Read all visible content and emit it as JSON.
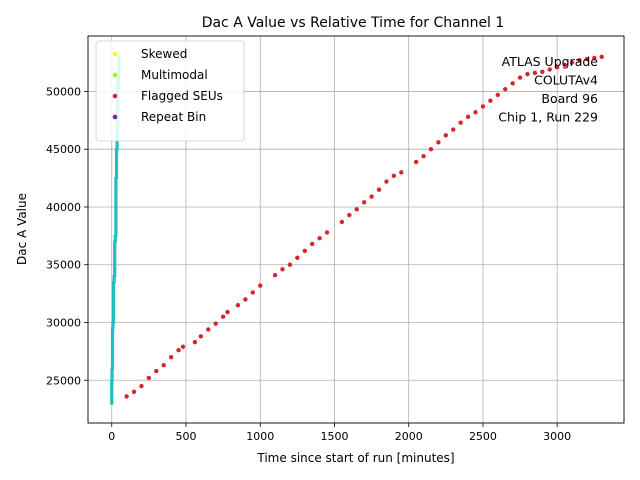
{
  "chart_data": {
    "type": "scatter",
    "title": "Dac A Value vs Relative Time for Channel 1",
    "xlabel": "Time since start of run [minutes]",
    "ylabel": "Dac A Value",
    "xlim": [
      -160,
      3450
    ],
    "ylim": [
      21300,
      54800
    ],
    "xticks": [
      0,
      500,
      1000,
      1500,
      2000,
      2500,
      3000
    ],
    "yticks": [
      25000,
      30000,
      35000,
      40000,
      45000,
      50000
    ],
    "grid": true,
    "legend_position": "top-left",
    "annotation": [
      "ATLAS Upgrade",
      "COLUTAv4",
      "Board 96",
      "Chip 1, Run 229"
    ],
    "series": [
      {
        "name": "Skewed",
        "color": "#ffff00",
        "points": []
      },
      {
        "name": "Multimodal",
        "color": "#99ff00",
        "points": []
      },
      {
        "name": "Flagged SEUs",
        "color": "#d62728",
        "points": [
          [
            100,
            23600
          ],
          [
            150,
            24000
          ],
          [
            200,
            24500
          ],
          [
            250,
            25200
          ],
          [
            300,
            25800
          ],
          [
            350,
            26300
          ],
          [
            400,
            27000
          ],
          [
            450,
            27600
          ],
          [
            480,
            27900
          ],
          [
            560,
            28300
          ],
          [
            600,
            28800
          ],
          [
            650,
            29400
          ],
          [
            700,
            29900
          ],
          [
            750,
            30500
          ],
          [
            780,
            30900
          ],
          [
            850,
            31500
          ],
          [
            900,
            32000
          ],
          [
            950,
            32600
          ],
          [
            1000,
            33200
          ],
          [
            1100,
            34100
          ],
          [
            1150,
            34600
          ],
          [
            1200,
            35000
          ],
          [
            1250,
            35600
          ],
          [
            1300,
            36200
          ],
          [
            1350,
            36800
          ],
          [
            1400,
            37300
          ],
          [
            1450,
            37800
          ],
          [
            1550,
            38700
          ],
          [
            1600,
            39300
          ],
          [
            1650,
            39800
          ],
          [
            1700,
            40400
          ],
          [
            1750,
            40900
          ],
          [
            1800,
            41500
          ],
          [
            1850,
            42200
          ],
          [
            1900,
            42700
          ],
          [
            1950,
            43000
          ],
          [
            2050,
            43900
          ],
          [
            2100,
            44400
          ],
          [
            2150,
            45000
          ],
          [
            2200,
            45600
          ],
          [
            2250,
            46200
          ],
          [
            2300,
            46700
          ],
          [
            2350,
            47300
          ],
          [
            2400,
            47800
          ],
          [
            2450,
            48200
          ],
          [
            2500,
            48700
          ],
          [
            2550,
            49200
          ],
          [
            2600,
            49700
          ],
          [
            2650,
            50200
          ],
          [
            2700,
            50700
          ],
          [
            2750,
            51200
          ],
          [
            2800,
            51500
          ],
          [
            2850,
            51600
          ],
          [
            2900,
            51700
          ],
          [
            2950,
            51900
          ],
          [
            3000,
            52100
          ],
          [
            3050,
            52300
          ],
          [
            3100,
            52500
          ],
          [
            3150,
            52700
          ],
          [
            3200,
            52800
          ],
          [
            3250,
            52900
          ],
          [
            3300,
            53000
          ]
        ]
      },
      {
        "name": "Repeat Bin",
        "color": "#7b1fa2",
        "points": []
      },
      {
        "name": "",
        "color": "#1fbfbf",
        "render": "stroke",
        "points": [
          [
            0,
            23000
          ],
          [
            0,
            25000
          ],
          [
            2,
            25000
          ],
          [
            2,
            26000
          ],
          [
            5,
            26000
          ],
          [
            5,
            29500
          ],
          [
            8,
            29500
          ],
          [
            8,
            30000
          ],
          [
            12,
            30000
          ],
          [
            12,
            33500
          ],
          [
            16,
            33500
          ],
          [
            16,
            34000
          ],
          [
            20,
            34000
          ],
          [
            20,
            37000
          ],
          [
            24,
            37000
          ],
          [
            24,
            37500
          ],
          [
            28,
            37500
          ],
          [
            28,
            42500
          ],
          [
            32,
            42500
          ],
          [
            32,
            45000
          ],
          [
            36,
            45000
          ],
          [
            36,
            46500
          ],
          [
            40,
            46500
          ],
          [
            40,
            50500
          ],
          [
            44,
            50500
          ],
          [
            44,
            51500
          ],
          [
            48,
            51500
          ],
          [
            48,
            53000
          ]
        ]
      }
    ]
  }
}
